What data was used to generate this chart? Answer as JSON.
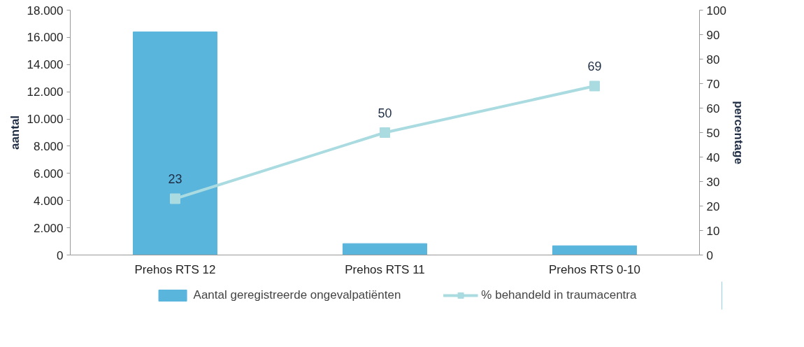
{
  "chart_data": {
    "type": "bar",
    "ylabel": "aantal",
    "y2label": "percentage",
    "categories": [
      "Prehos RTS 12",
      "Prehos RTS 11",
      "Prehos RTS 0-10"
    ],
    "series": [
      {
        "name": "Aantal geregistreerde ongevalpatiënten",
        "color": "#5ab5dd",
        "values": [
          16400,
          840,
          680
        ]
      },
      {
        "name": "% behandeld in traumacentra",
        "type": "line",
        "axis": "y2",
        "color": "#a9dbe0",
        "values": [
          23,
          50,
          69
        ],
        "marker": "square",
        "data_labels": true
      }
    ],
    "ylim": [
      0,
      18000
    ],
    "yticks": [
      {
        "value": 0,
        "label": "0"
      },
      {
        "value": 2000,
        "label": "2.000"
      },
      {
        "value": 4000,
        "label": "4.000"
      },
      {
        "value": 6000,
        "label": "6.000"
      },
      {
        "value": 8000,
        "label": "8.000"
      },
      {
        "value": 10000,
        "label": "10.000"
      },
      {
        "value": 12000,
        "label": "12.000"
      },
      {
        "value": 14000,
        "label": "14.000"
      },
      {
        "value": 16000,
        "label": "16.000"
      },
      {
        "value": 18000,
        "label": "18.000"
      }
    ],
    "y2lim": [
      0,
      100
    ],
    "y2ticks": [
      0,
      10,
      20,
      30,
      40,
      50,
      60,
      70,
      80,
      90,
      100
    ],
    "grid": false,
    "legend": "bottom"
  }
}
